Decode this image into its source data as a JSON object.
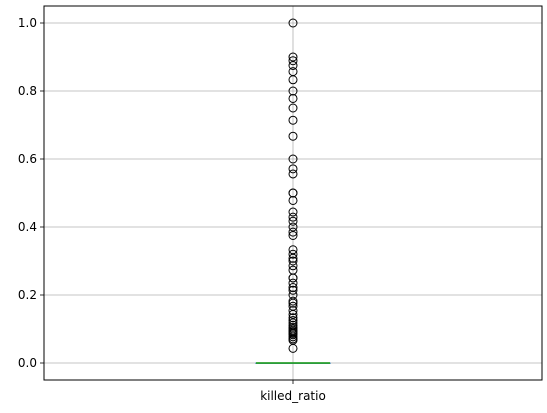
{
  "chart_data": {
    "type": "box",
    "categories": [
      "killed_ratio"
    ],
    "ylim": [
      -0.05,
      1.05
    ],
    "yticks": [
      0.0,
      0.2,
      0.4,
      0.6,
      0.8,
      1.0
    ],
    "ytick_labels": [
      "0.0",
      "0.2",
      "0.4",
      "0.6",
      "0.8",
      "1.0"
    ],
    "grid": true,
    "series": [
      {
        "box": {
          "q1": 0.0,
          "median": 0.0,
          "q3": 0.0,
          "whisker_low": 0.0,
          "whisker_high": 0.0
        },
        "outliers": [
          1.0,
          0.9,
          0.889,
          0.875,
          0.857,
          0.833,
          0.8,
          0.778,
          0.75,
          0.714,
          0.667,
          0.6,
          0.571,
          0.556,
          0.5,
          0.5,
          0.478,
          0.444,
          0.429,
          0.417,
          0.4,
          0.385,
          0.375,
          0.333,
          0.32,
          0.308,
          0.3,
          0.286,
          0.273,
          0.25,
          0.25,
          0.235,
          0.222,
          0.214,
          0.2,
          0.182,
          0.176,
          0.167,
          0.154,
          0.143,
          0.133,
          0.125,
          0.118,
          0.111,
          0.105,
          0.1,
          0.095,
          0.091,
          0.087,
          0.083,
          0.077,
          0.071,
          0.067,
          0.043
        ]
      }
    ]
  },
  "colors": {
    "grid": "#b0b0b0",
    "median": "#2ca02c",
    "box": "#1f77b4",
    "outlier": "#000000"
  }
}
